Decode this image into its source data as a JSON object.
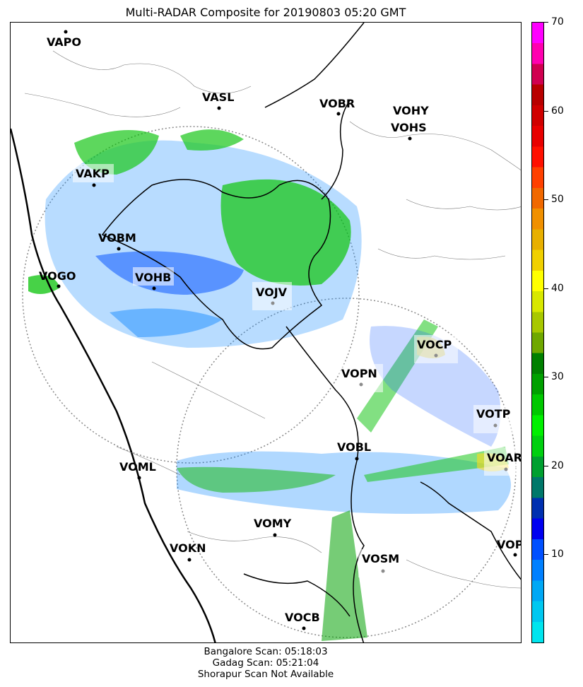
{
  "title": "Multi-RADAR Composite for 20190803 05:20 GMT",
  "stations": [
    {
      "code": "VAPO"
    },
    {
      "code": "VASL"
    },
    {
      "code": "VOBR"
    },
    {
      "code": "VOHY"
    },
    {
      "code": "VOHS"
    },
    {
      "code": "VAKP"
    },
    {
      "code": "VOBM"
    },
    {
      "code": "VOGO"
    },
    {
      "code": "VOHB"
    },
    {
      "code": "VOJV"
    },
    {
      "code": "VOCP"
    },
    {
      "code": "VOPN"
    },
    {
      "code": "VOTP"
    },
    {
      "code": "VOBL"
    },
    {
      "code": "VOAR"
    },
    {
      "code": "VOML"
    },
    {
      "code": "VOMY"
    },
    {
      "code": "VOKN"
    },
    {
      "code": "VOSM"
    },
    {
      "code": "VOPC"
    },
    {
      "code": "VOCB"
    }
  ],
  "colorbar": {
    "min": 0,
    "max": 70,
    "ticks": [
      "10",
      "20",
      "30",
      "40",
      "50",
      "60",
      "70"
    ],
    "colors": [
      "#00e5ee",
      "#00c8f0",
      "#00a8f5",
      "#0080ff",
      "#0050ff",
      "#0000f0",
      "#0030b0",
      "#00786a",
      "#00a030",
      "#00d010",
      "#00f000",
      "#00c800",
      "#00a000",
      "#008000",
      "#6fa800",
      "#a8c800",
      "#d8e800",
      "#ffff00",
      "#f0d000",
      "#e8b000",
      "#f09000",
      "#f06800",
      "#ff4000",
      "#ff1000",
      "#e80000",
      "#d00000",
      "#b80000",
      "#d00050",
      "#ff00b0",
      "#ff00ff"
    ]
  },
  "footer": {
    "line1": "Bangalore Scan: 05:18:03",
    "line2": "Gadag Scan: 05:21:04",
    "line3": "Shorapur Scan Not Available"
  }
}
